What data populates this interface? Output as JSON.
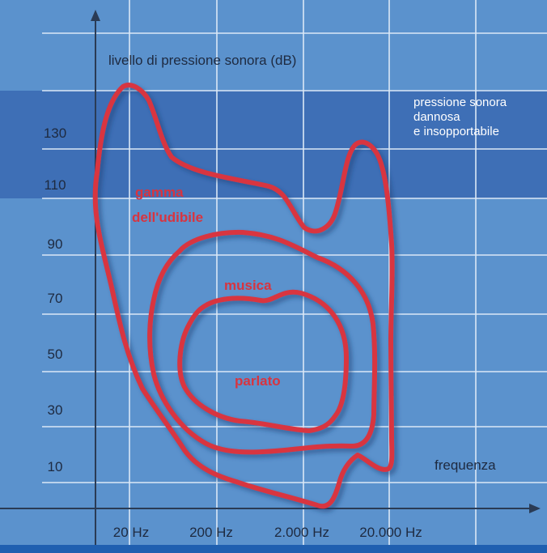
{
  "colors": {
    "background": "#5b92cd",
    "danger_band": "#3e6fb6",
    "grid": "#dbe8f6",
    "axis": "#2a3b55",
    "curve": "#d8343f",
    "text": "#1e2a40",
    "bottom_bar": "#1f5fb0"
  },
  "diagram": {
    "y_axis_label": "livello di pressione sonora (dB)",
    "x_axis_label": "frequenza",
    "y_ticks": [
      "130",
      "110",
      "90",
      "70",
      "50",
      "30",
      "10"
    ],
    "x_ticks": [
      "20 Hz",
      "200 Hz",
      "2.000 Hz",
      "20.000 Hz"
    ],
    "danger_zone": {
      "label_lines": [
        "pressione sonora",
        "dannosa",
        "e insopportabile"
      ]
    },
    "regions": [
      {
        "id": "hearing-range",
        "label_lines": [
          "gamma",
          "dell'udibile"
        ]
      },
      {
        "id": "music",
        "label_lines": [
          "musica"
        ]
      },
      {
        "id": "speech",
        "label_lines": [
          "parlato"
        ]
      }
    ]
  }
}
